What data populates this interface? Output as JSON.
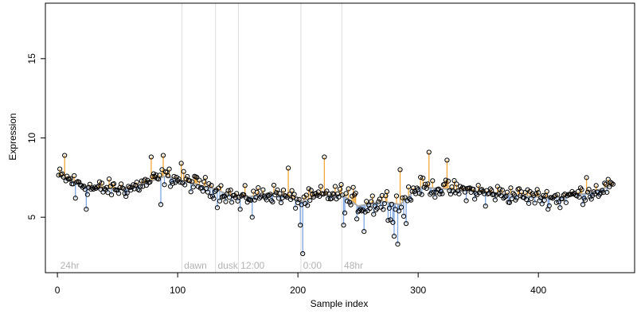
{
  "chart_data": {
    "type": "scatter",
    "title": "",
    "xlabel": "Sample index",
    "ylabel": "Expression",
    "xlim": [
      -10,
      480
    ],
    "ylim": [
      1.5,
      18.5
    ],
    "x_ticks": [
      0,
      100,
      200,
      300,
      400
    ],
    "y_ticks": [
      5,
      10,
      15
    ],
    "grid": false,
    "legend": "none",
    "colors": {
      "point_stroke": "#000000",
      "smooth_line": "#a9a9a9",
      "segment_above": "#f2a93b",
      "segment_below": "#7ea6e0",
      "region_line": "#dddddd",
      "region_label": "#b3b3b3"
    },
    "regions": [
      {
        "label": "24hr",
        "start": 1
      },
      {
        "label": "dawn",
        "start": 104
      },
      {
        "label": "dusk",
        "start": 132
      },
      {
        "label": "12:00",
        "start": 151
      },
      {
        "label": "0:00",
        "start": 203
      },
      {
        "label": "48hr",
        "start": 237
      }
    ],
    "baseline": [
      [
        1,
        7.6
      ],
      [
        30,
        6.8
      ],
      [
        60,
        6.8
      ],
      [
        90,
        7.6
      ],
      [
        104,
        7.3
      ],
      [
        130,
        6.8
      ],
      [
        150,
        6.2
      ],
      [
        180,
        6.5
      ],
      [
        203,
        6.0
      ],
      [
        220,
        6.4
      ],
      [
        237,
        6.4
      ],
      [
        250,
        5.7
      ],
      [
        270,
        6.0
      ],
      [
        285,
        5.8
      ],
      [
        300,
        6.9
      ],
      [
        320,
        6.8
      ],
      [
        350,
        6.6
      ],
      [
        380,
        6.4
      ],
      [
        410,
        6.2
      ],
      [
        440,
        6.5
      ],
      [
        462,
        7.0
      ]
    ],
    "outliers": {
      "6": 8.9,
      "15": 6.2,
      "24": 5.5,
      "78": 8.8,
      "86": 5.8,
      "88": 8.9,
      "103": 8.4,
      "133": 5.6,
      "152": 5.5,
      "162": 5.0,
      "192": 8.1,
      "202": 4.5,
      "204": 2.7,
      "222": 8.8,
      "238": 4.5,
      "255": 4.1,
      "275": 4.8,
      "280": 3.8,
      "283": 3.3,
      "285": 8.0,
      "290": 4.6,
      "309": 9.1,
      "324": 8.6,
      "356": 5.7,
      "418": 5.6,
      "440": 7.5
    },
    "n_points": 462
  }
}
